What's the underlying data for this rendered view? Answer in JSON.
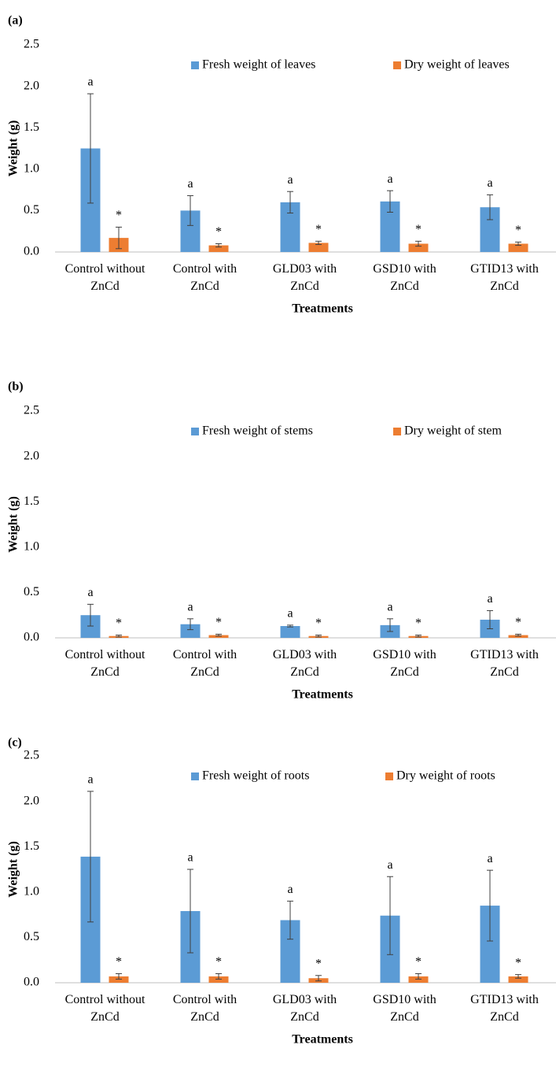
{
  "chart_data": [
    {
      "type": "bar",
      "panel_label": "(a)",
      "xlabel": "Treatments",
      "ylabel": "Weight (g)",
      "categories": [
        "Control without ZnCd",
        "Control with ZnCd",
        "GLD03 with ZnCd",
        "GSD10 with ZnCd",
        "GTID13 with ZnCd"
      ],
      "series": [
        {
          "name": "Fresh weight of leaves",
          "color": "#5b9bd5",
          "values": [
            1.25,
            0.5,
            0.6,
            0.61,
            0.54
          ],
          "errors": [
            0.66,
            0.18,
            0.13,
            0.13,
            0.15
          ],
          "annotations": [
            "a",
            "a",
            "a",
            "a",
            "a"
          ]
        },
        {
          "name": "Dry weight of leaves",
          "color": "#ed7d31",
          "values": [
            0.17,
            0.08,
            0.11,
            0.1,
            0.1
          ],
          "errors": [
            0.13,
            0.02,
            0.02,
            0.03,
            0.02
          ],
          "annotations": [
            "*",
            "*",
            "*",
            "*",
            "*"
          ]
        }
      ],
      "ylim": [
        0,
        2.5
      ],
      "yticks": [
        {
          "value": 0,
          "label": "0.0"
        },
        0.5,
        {
          "value": 1,
          "label": "1.0"
        },
        1.5,
        {
          "value": 2,
          "label": "2.0"
        },
        2.5
      ],
      "legend": "top",
      "grid": false
    },
    {
      "type": "bar",
      "panel_label": "(b)",
      "xlabel": "Treatments",
      "ylabel": "Weight (g)",
      "categories": [
        "Control without ZnCd",
        "Control with ZnCd",
        "GLD03 with ZnCd",
        "GSD10 with ZnCd",
        "GTID13 with ZnCd"
      ],
      "series": [
        {
          "name": "Fresh weight of stems",
          "color": "#5b9bd5",
          "values": [
            0.25,
            0.15,
            0.13,
            0.14,
            0.2
          ],
          "errors": [
            0.12,
            0.06,
            0.01,
            0.07,
            0.1
          ],
          "annotations": [
            "a",
            "a",
            "a",
            "a",
            "a"
          ]
        },
        {
          "name": "Dry weight of stem",
          "color": "#ed7d31",
          "values": [
            0.02,
            0.03,
            0.02,
            0.02,
            0.03
          ],
          "errors": [
            0.01,
            0.01,
            0.01,
            0.01,
            0.01
          ],
          "annotations": [
            "*",
            "*",
            "*",
            "*",
            "*"
          ]
        }
      ],
      "ylim": [
        0,
        2.5
      ],
      "yticks": [
        {
          "value": 0,
          "label": "0.0"
        },
        0.5,
        {
          "value": 1,
          "label": "1.0"
        },
        1.5,
        {
          "value": 2,
          "label": "2.0"
        },
        2.5
      ],
      "legend": "top",
      "grid": false
    },
    {
      "type": "bar",
      "panel_label": "(c)",
      "xlabel": "Treatments",
      "ylabel": "Weight (g)",
      "categories": [
        "Control without ZnCd",
        "Control with ZnCd",
        "GLD03 with ZnCd",
        "GSD10 with ZnCd",
        "GTID13 with ZnCd"
      ],
      "series": [
        {
          "name": "Fresh weight of roots",
          "color": "#5b9bd5",
          "values": [
            1.39,
            0.79,
            0.69,
            0.74,
            0.85
          ],
          "errors": [
            0.72,
            0.46,
            0.21,
            0.43,
            0.39
          ],
          "annotations": [
            "a",
            "a",
            "a",
            "a",
            "a"
          ]
        },
        {
          "name": "Dry weight of roots",
          "color": "#ed7d31",
          "values": [
            0.07,
            0.07,
            0.05,
            0.07,
            0.07
          ],
          "errors": [
            0.03,
            0.03,
            0.03,
            0.03,
            0.02
          ],
          "annotations": [
            "*",
            "*",
            "*",
            "*",
            "*"
          ]
        }
      ],
      "ylim": [
        0,
        2.5
      ],
      "yticks": [
        {
          "value": 0,
          "label": "0.0"
        },
        0.5,
        {
          "value": 1,
          "label": "1.0"
        },
        1.5,
        {
          "value": 2,
          "label": "2.0"
        },
        2.5
      ],
      "legend": "top",
      "grid": false
    }
  ]
}
